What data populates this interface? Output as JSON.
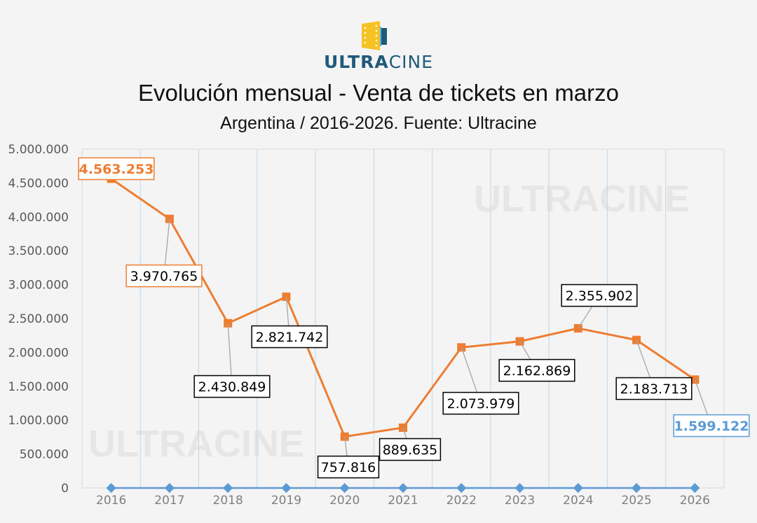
{
  "brand": {
    "bold": "ULTRA",
    "light": "CINE",
    "watermark": "ULTRACINE"
  },
  "chart_data": {
    "type": "line",
    "title": "Evolución mensual - Venta de tickets en marzo",
    "subtitle": "Argentina / 2016-2026. Fuente: Ultracine",
    "categories": [
      "2016",
      "2017",
      "2018",
      "2019",
      "2020",
      "2021",
      "2022",
      "2023",
      "2024",
      "2025",
      "2026"
    ],
    "series": [
      {
        "values": [
          4563253,
          3970765,
          2430849,
          2821742,
          757816,
          889635,
          2073979,
          2162869,
          2355902,
          2183713,
          1599122
        ],
        "color": "#ed7d31",
        "marker": "square"
      },
      {
        "values": [
          0,
          0,
          0,
          0,
          0,
          0,
          0,
          0,
          0,
          0,
          0
        ],
        "color": "#5b9bd5",
        "marker": "diamond"
      }
    ],
    "data_labels": [
      "4.563.253",
      "3.970.765",
      "2.430.849",
      "2.821.742",
      "757.816",
      "889.635",
      "2.073.979",
      "2.162.869",
      "2.355.902",
      "2.183.713",
      "1.599.122"
    ],
    "highlight_labels": {
      "0": "#ed7d31",
      "1": "#ed7d31",
      "10": "#5b9bd5"
    },
    "yticks": [
      "0",
      "500.000",
      "1.000.000",
      "1.500.000",
      "2.000.000",
      "2.500.000",
      "3.000.000",
      "3.500.000",
      "4.000.000",
      "4.500.000",
      "5.000.000"
    ],
    "ylim": [
      0,
      5000000
    ],
    "grid": "vertical category separators",
    "legend": "none"
  }
}
